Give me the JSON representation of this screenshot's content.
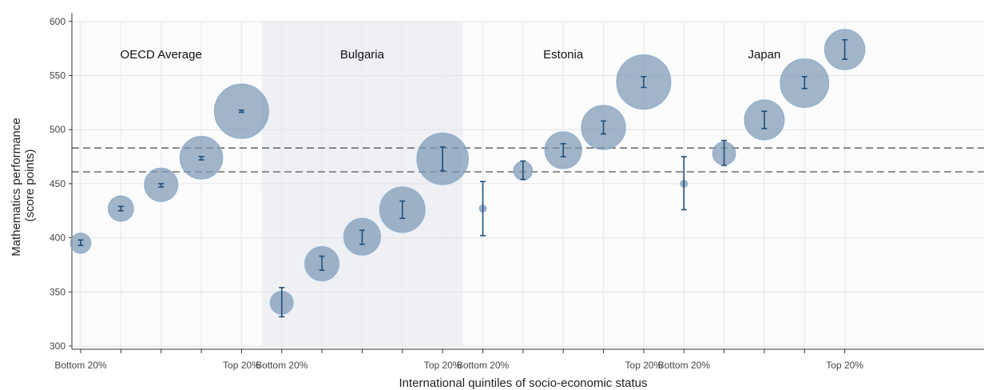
{
  "chart_data": {
    "type": "scatter",
    "title": "",
    "xlabel": "International quintiles of socio-economic status",
    "ylabel_lines": [
      "Mathematics performance",
      "(score points)"
    ],
    "ylim": [
      297,
      608
    ],
    "yticks": [
      300,
      350,
      400,
      450,
      500,
      550,
      600
    ],
    "grid": true,
    "quintile_tick_labels": [
      "Bottom 20%",
      "",
      "",
      "",
      "Top 20%"
    ],
    "reference_lines": [
      483,
      461
    ],
    "highlight_group": "Bulgaria",
    "colors": {
      "bubble": "#7e98b4",
      "error_bar": "#1f4e79",
      "ref_line": "#555555",
      "highlight_bg": "#eef0f4"
    },
    "groups": [
      {
        "name": "OECD Average",
        "points": [
          {
            "quintile": 1,
            "value": 395,
            "ci": [
              393,
              398
            ],
            "size": 0.14
          },
          {
            "quintile": 2,
            "value": 427,
            "ci": [
              425,
              429
            ],
            "size": 0.22
          },
          {
            "quintile": 3,
            "value": 449,
            "ci": [
              447,
              450
            ],
            "size": 0.38
          },
          {
            "quintile": 4,
            "value": 474,
            "ci": [
              472,
              475
            ],
            "size": 0.62
          },
          {
            "quintile": 5,
            "value": 517,
            "ci": [
              516,
              518
            ],
            "size": 1.0
          }
        ]
      },
      {
        "name": "Bulgaria",
        "points": [
          {
            "quintile": 1,
            "value": 340,
            "ci": [
              327,
              354
            ],
            "size": 0.18
          },
          {
            "quintile": 2,
            "value": 376,
            "ci": [
              370,
              383
            ],
            "size": 0.4
          },
          {
            "quintile": 3,
            "value": 401,
            "ci": [
              394,
              407
            ],
            "size": 0.46
          },
          {
            "quintile": 4,
            "value": 426,
            "ci": [
              418,
              434
            ],
            "size": 0.7
          },
          {
            "quintile": 5,
            "value": 473,
            "ci": [
              462,
              484
            ],
            "size": 0.9
          }
        ]
      },
      {
        "name": "Estonia",
        "points": [
          {
            "quintile": 1,
            "value": 427,
            "ci": [
              402,
              452
            ],
            "size": 0.01
          },
          {
            "quintile": 2,
            "value": 462,
            "ci": [
              454,
              471
            ],
            "size": 0.12
          },
          {
            "quintile": 3,
            "value": 481,
            "ci": [
              475,
              487
            ],
            "size": 0.46
          },
          {
            "quintile": 4,
            "value": 502,
            "ci": [
              496,
              508
            ],
            "size": 0.66
          },
          {
            "quintile": 5,
            "value": 544,
            "ci": [
              539,
              549
            ],
            "size": 1.0
          }
        ]
      },
      {
        "name": "Japan",
        "points": [
          {
            "quintile": 1,
            "value": 450,
            "ci": [
              426,
              475
            ],
            "size": 0.01
          },
          {
            "quintile": 2,
            "value": 478,
            "ci": [
              467,
              490
            ],
            "size": 0.18
          },
          {
            "quintile": 3,
            "value": 509,
            "ci": [
              501,
              517
            ],
            "size": 0.54
          },
          {
            "quintile": 4,
            "value": 543,
            "ci": [
              538,
              549
            ],
            "size": 0.8
          },
          {
            "quintile": 5,
            "value": 574,
            "ci": [
              565,
              583
            ],
            "size": 0.55
          }
        ]
      }
    ]
  }
}
